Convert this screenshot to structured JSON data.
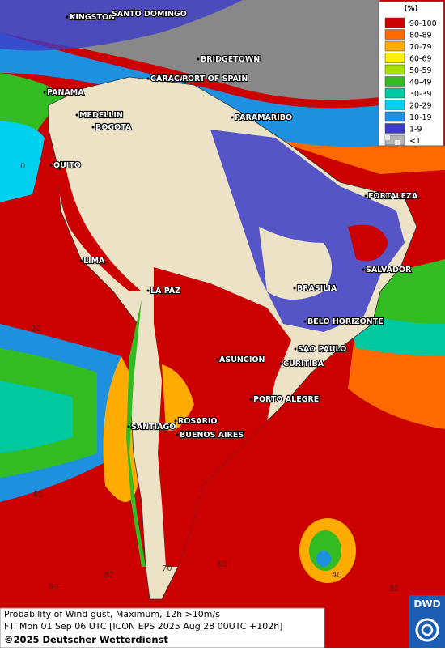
{
  "legend": {
    "unit": "(%)",
    "items": [
      {
        "label": "90-100",
        "color": "#cc0000"
      },
      {
        "label": "80-89",
        "color": "#ff6a00"
      },
      {
        "label": "70-79",
        "color": "#ffab00"
      },
      {
        "label": "60-69",
        "color": "#ffee00"
      },
      {
        "label": "50-59",
        "color": "#a8e000"
      },
      {
        "label": "40-49",
        "color": "#33bb22"
      },
      {
        "label": "30-39",
        "color": "#00c8a0"
      },
      {
        "label": "20-29",
        "color": "#00d0f0"
      },
      {
        "label": "10-19",
        "color": "#1e90e0"
      },
      {
        "label": "1-9",
        "color": "#3c3cc8"
      },
      {
        "label": "<1",
        "color": "#b4b4b4"
      }
    ]
  },
  "cities": [
    "KINGSTON",
    "SANTO DOMINGO",
    "BRIDGETOWN",
    "CARACAS",
    "PORT OF SPAIN",
    "PANAMA",
    "MEDELLIN",
    "BOGOTA",
    "PARAMARIBO",
    "QUITO",
    "FORTALEZA",
    "LIMA",
    "SALVADOR",
    "LA PAZ",
    "BRASILIA",
    "BELO HORIZONTE",
    "SAO PAULO",
    "ASUNCION",
    "CURITIBA",
    "PORTO ALEGRE",
    "ROSARIO",
    "BUENOS AIRES",
    "SANTIAGO"
  ],
  "grid_labels": [
    "0",
    "20",
    "40",
    "60",
    "80",
    "70",
    "60",
    "40",
    "30"
  ],
  "footer": {
    "line1": "Probability of Wind gust, Maximum, 12h >10m/s",
    "line2": "FT: Mon 01 Sep 06 UTC [ICON EPS 2025 Aug 28 00UTC +102h]",
    "copyright": "©2025 Deutscher Wetterdienst"
  },
  "logo": "DWD"
}
